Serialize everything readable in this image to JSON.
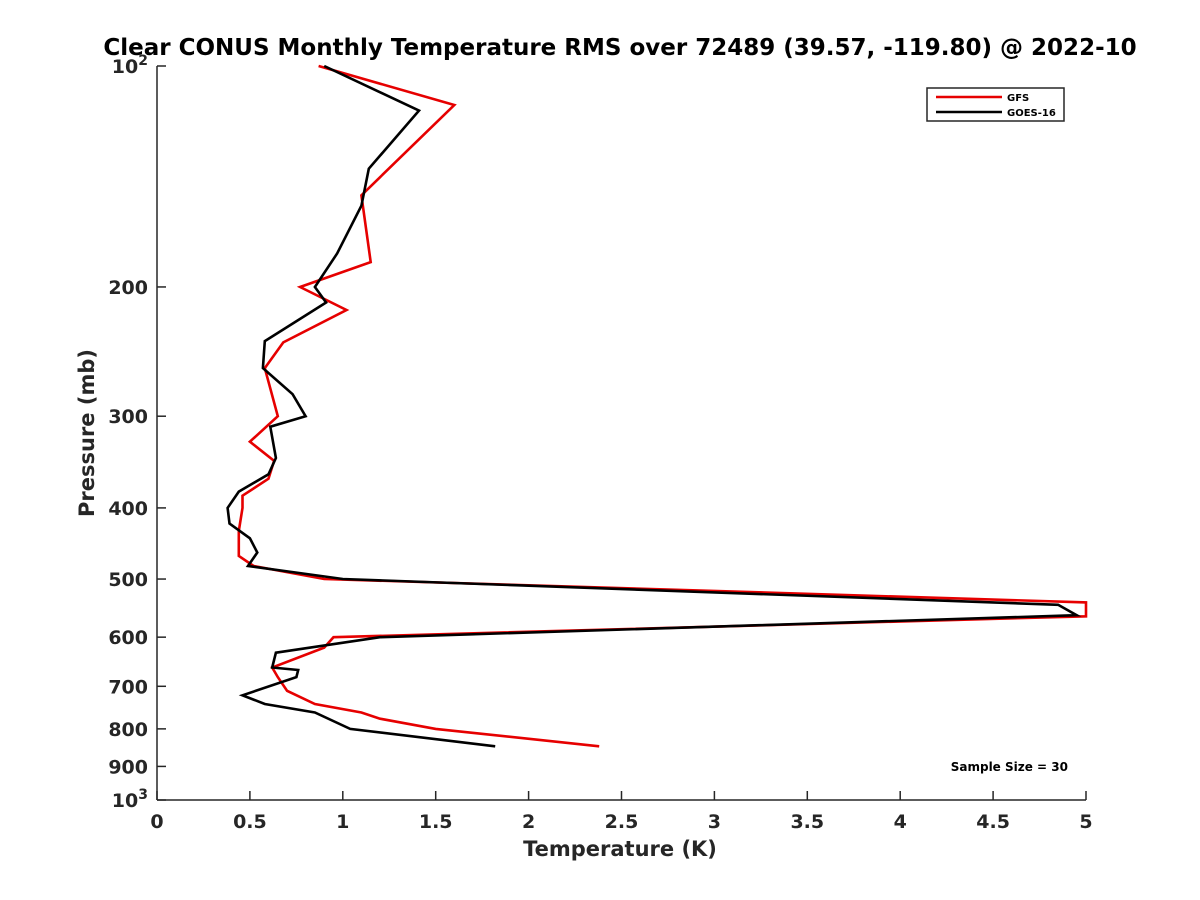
{
  "chart_data": {
    "type": "line",
    "title": "Clear CONUS Monthly Temperature RMS over 72489 (39.57, -119.80) @ 2022-10",
    "xlabel": "Temperature (K)",
    "ylabel": "Pressure (mb)",
    "xlim": [
      0,
      5
    ],
    "ylim": [
      100,
      1000
    ],
    "y_scale": "log",
    "y_reversed": true,
    "x_ticks": [
      0,
      0.5,
      1,
      1.5,
      2,
      2.5,
      3,
      3.5,
      4,
      4.5,
      5
    ],
    "x_tick_labels": [
      "0",
      "0.5",
      "1",
      "1.5",
      "2",
      "2.5",
      "3",
      "3.5",
      "4",
      "4.5",
      "5"
    ],
    "y_ticks": [
      100,
      200,
      300,
      400,
      500,
      600,
      700,
      800,
      900,
      1000
    ],
    "y_tick_labels": [
      {
        "base": "10",
        "sup": "2"
      },
      {
        "base": "200",
        "sup": ""
      },
      {
        "base": "300",
        "sup": ""
      },
      {
        "base": "400",
        "sup": ""
      },
      {
        "base": "500",
        "sup": ""
      },
      {
        "base": "600",
        "sup": ""
      },
      {
        "base": "700",
        "sup": ""
      },
      {
        "base": "800",
        "sup": ""
      },
      {
        "base": "900",
        "sup": ""
      },
      {
        "base": "10",
        "sup": "3"
      }
    ],
    "grid": false,
    "legend_position": "top-right",
    "annotation": "Sample Size = 30",
    "series": [
      {
        "name": "GFS",
        "color": "#e60000",
        "points": [
          [
            0.87,
            100
          ],
          [
            1.6,
            113
          ],
          [
            1.1,
            150
          ],
          [
            1.15,
            185
          ],
          [
            0.77,
            200
          ],
          [
            1.02,
            215
          ],
          [
            0.68,
            238
          ],
          [
            0.58,
            258
          ],
          [
            0.65,
            300
          ],
          [
            0.5,
            325
          ],
          [
            0.63,
            345
          ],
          [
            0.6,
            365
          ],
          [
            0.46,
            385
          ],
          [
            0.46,
            400
          ],
          [
            0.44,
            430
          ],
          [
            0.44,
            465
          ],
          [
            0.52,
            480
          ],
          [
            0.9,
            500
          ],
          [
            5.0,
            538
          ],
          [
            5.0,
            562
          ],
          [
            0.95,
            600
          ],
          [
            0.9,
            620
          ],
          [
            0.62,
            660
          ],
          [
            0.65,
            680
          ],
          [
            0.7,
            710
          ],
          [
            0.85,
            740
          ],
          [
            1.1,
            760
          ],
          [
            1.2,
            775
          ],
          [
            1.5,
            800
          ],
          [
            2.38,
            845
          ]
        ]
      },
      {
        "name": "GOES-16",
        "color": "#000000",
        "points": [
          [
            0.9,
            100
          ],
          [
            1.41,
            115
          ],
          [
            1.14,
            138
          ],
          [
            1.1,
            155
          ],
          [
            0.97,
            180
          ],
          [
            0.85,
            200
          ],
          [
            0.91,
            210
          ],
          [
            0.58,
            237
          ],
          [
            0.57,
            258
          ],
          [
            0.73,
            280
          ],
          [
            0.8,
            300
          ],
          [
            0.61,
            310
          ],
          [
            0.64,
            342
          ],
          [
            0.6,
            360
          ],
          [
            0.44,
            380
          ],
          [
            0.38,
            400
          ],
          [
            0.39,
            420
          ],
          [
            0.5,
            440
          ],
          [
            0.54,
            460
          ],
          [
            0.49,
            480
          ],
          [
            1.0,
            500
          ],
          [
            4.85,
            542
          ],
          [
            4.95,
            560
          ],
          [
            1.2,
            600
          ],
          [
            0.64,
            630
          ],
          [
            0.62,
            660
          ],
          [
            0.76,
            665
          ],
          [
            0.75,
            680
          ],
          [
            0.46,
            720
          ],
          [
            0.58,
            740
          ],
          [
            0.85,
            760
          ],
          [
            1.04,
            800
          ],
          [
            1.82,
            845
          ]
        ]
      }
    ]
  }
}
